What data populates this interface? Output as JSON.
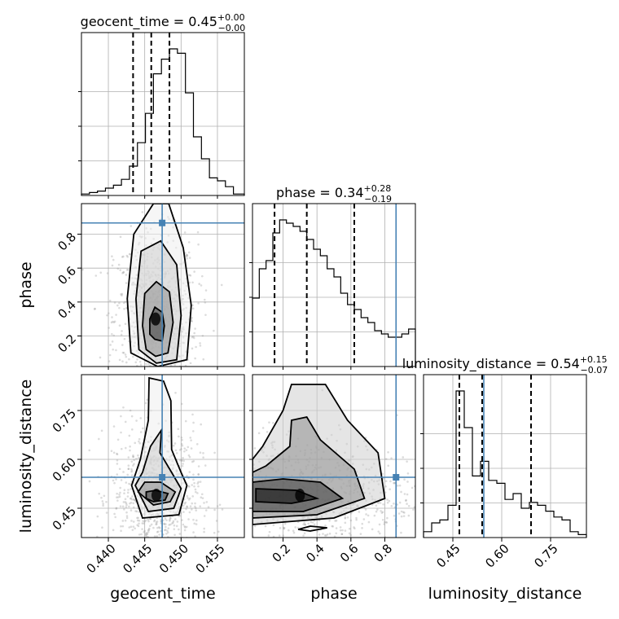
{
  "chart_data": {
    "type": "corner",
    "parameters": [
      "geocent_time",
      "phase",
      "luminosity_distance"
    ],
    "ranges": {
      "geocent_time": [
        0.4363,
        0.4587
      ],
      "phase": [
        0.02,
        0.98
      ],
      "luminosity_distance": [
        0.36,
        0.86
      ]
    },
    "truths": {
      "geocent_time": 0.4474,
      "phase": 0.866,
      "luminosity_distance": 0.545
    },
    "titles": {
      "geocent_time": {
        "label": "geocent_time",
        "value": "0.45",
        "plus": "+0.00",
        "minus": "−0.00"
      },
      "phase": {
        "label": "phase",
        "value": "0.34",
        "plus": "+0.28",
        "minus": "−0.19"
      },
      "luminosity_distance": {
        "label": "luminosity_distance",
        "value": "0.54",
        "plus": "+0.15",
        "minus": "−0.07"
      }
    },
    "quantiles": {
      "geocent_time": [
        0.4434,
        0.4459,
        0.4484
      ],
      "phase": [
        0.15,
        0.34,
        0.62
      ],
      "luminosity_distance": [
        0.47,
        0.54,
        0.69
      ]
    },
    "ticks": {
      "geocent_time": [
        {
          "v": 0.44,
          "t": "0.440"
        },
        {
          "v": 0.445,
          "t": "0.445"
        },
        {
          "v": 0.45,
          "t": "0.450"
        },
        {
          "v": 0.455,
          "t": "0.455"
        }
      ],
      "phase": [
        {
          "v": 0.2,
          "t": "0.2"
        },
        {
          "v": 0.4,
          "t": "0.4"
        },
        {
          "v": 0.6,
          "t": "0.6"
        },
        {
          "v": 0.8,
          "t": "0.8"
        }
      ],
      "luminosity_distance": [
        {
          "v": 0.45,
          "t": "0.45"
        },
        {
          "v": 0.6,
          "t": "0.60"
        },
        {
          "v": 0.75,
          "t": "0.75"
        }
      ]
    },
    "histograms": {
      "geocent_time": {
        "edges": [
          0.4363,
          0.4374,
          0.4385,
          0.4396,
          0.4407,
          0.4418,
          0.4429,
          0.444,
          0.4451,
          0.4462,
          0.4473,
          0.4484,
          0.4495,
          0.4506,
          0.4517,
          0.4528,
          0.4539,
          0.455,
          0.4561,
          0.4572,
          0.4587
        ],
        "counts": [
          0.01,
          0.02,
          0.03,
          0.05,
          0.07,
          0.11,
          0.2,
          0.36,
          0.56,
          0.83,
          0.93,
          1.0,
          0.97,
          0.7,
          0.4,
          0.25,
          0.12,
          0.1,
          0.06,
          0.01
        ],
        "note": ""
      },
      "phase": {
        "edges": [
          0.02,
          0.06,
          0.1,
          0.14,
          0.18,
          0.22,
          0.26,
          0.3,
          0.34,
          0.38,
          0.42,
          0.46,
          0.5,
          0.54,
          0.58,
          0.62,
          0.66,
          0.7,
          0.74,
          0.78,
          0.82,
          0.86,
          0.9,
          0.94,
          0.98
        ],
        "counts": [
          0.42,
          0.6,
          0.65,
          0.82,
          0.9,
          0.88,
          0.86,
          0.83,
          0.78,
          0.72,
          0.68,
          0.6,
          0.55,
          0.45,
          0.38,
          0.35,
          0.3,
          0.27,
          0.22,
          0.2,
          0.18,
          0.18,
          0.2,
          0.23
        ],
        "note": ""
      },
      "luminosity_distance": {
        "edges": [
          0.36,
          0.385,
          0.41,
          0.435,
          0.46,
          0.485,
          0.51,
          0.535,
          0.56,
          0.585,
          0.61,
          0.635,
          0.66,
          0.685,
          0.71,
          0.735,
          0.76,
          0.785,
          0.81,
          0.835,
          0.86
        ],
        "counts": [
          0.04,
          0.1,
          0.12,
          0.22,
          1.0,
          0.75,
          0.42,
          0.52,
          0.39,
          0.37,
          0.26,
          0.3,
          0.2,
          0.24,
          0.22,
          0.18,
          0.14,
          0.12,
          0.04,
          0.02
        ],
        "note": ""
      }
    },
    "joint": [
      {
        "x": "geocent_time",
        "y": "phase",
        "density_center": [
          0.4465,
          0.3
        ],
        "density_spread": [
          0.0016,
          0.14
        ],
        "contours": [
          [
            [
              0.4464,
              0.18
            ],
            [
              0.4474,
              0.17
            ],
            [
              0.4477,
              0.26
            ],
            [
              0.4474,
              0.34
            ],
            [
              0.4464,
              0.37
            ],
            [
              0.4457,
              0.3
            ],
            [
              0.4457,
              0.21
            ]
          ],
          [
            [
              0.4465,
              0.08
            ],
            [
              0.4482,
              0.1
            ],
            [
              0.4489,
              0.28
            ],
            [
              0.4484,
              0.46
            ],
            [
              0.4466,
              0.52
            ],
            [
              0.445,
              0.45
            ],
            [
              0.4447,
              0.26
            ],
            [
              0.4452,
              0.12
            ]
          ],
          [
            [
              0.4466,
              0.04
            ],
            [
              0.4494,
              0.06
            ],
            [
              0.45,
              0.32
            ],
            [
              0.4494,
              0.62
            ],
            [
              0.4472,
              0.76
            ],
            [
              0.4445,
              0.7
            ],
            [
              0.4438,
              0.42
            ],
            [
              0.4442,
              0.12
            ]
          ],
          [
            [
              0.4468,
              0.02
            ],
            [
              0.4508,
              0.06
            ],
            [
              0.4514,
              0.38
            ],
            [
              0.4503,
              0.72
            ],
            [
              0.4483,
              0.98
            ],
            [
              0.4462,
              0.98
            ],
            [
              0.4435,
              0.8
            ],
            [
              0.4426,
              0.42
            ],
            [
              0.4431,
              0.1
            ]
          ]
        ]
      },
      {
        "x": "geocent_time",
        "y": "luminosity_distance",
        "density_center": [
          0.4466,
          0.49
        ],
        "density_spread": [
          0.0017,
          0.06
        ],
        "contours": [
          [
            [
              0.4452,
              0.48
            ],
            [
              0.4462,
              0.47
            ],
            [
              0.4478,
              0.475
            ],
            [
              0.4482,
              0.495
            ],
            [
              0.4465,
              0.505
            ],
            [
              0.4452,
              0.5
            ]
          ],
          [
            [
              0.4441,
              0.5
            ],
            [
              0.4462,
              0.46
            ],
            [
              0.4485,
              0.47
            ],
            [
              0.4492,
              0.5
            ],
            [
              0.4472,
              0.53
            ],
            [
              0.445,
              0.53
            ]
          ],
          [
            [
              0.4437,
              0.52
            ],
            [
              0.4455,
              0.44
            ],
            [
              0.449,
              0.45
            ],
            [
              0.45,
              0.51
            ],
            [
              0.4487,
              0.56
            ],
            [
              0.4471,
              0.62
            ],
            [
              0.4473,
              0.69
            ],
            [
              0.4458,
              0.64
            ],
            [
              0.4447,
              0.56
            ]
          ],
          [
            [
              0.4432,
              0.52
            ],
            [
              0.4447,
              0.42
            ],
            [
              0.4497,
              0.43
            ],
            [
              0.4508,
              0.52
            ],
            [
              0.45,
              0.56
            ],
            [
              0.4487,
              0.63
            ],
            [
              0.4486,
              0.78
            ],
            [
              0.4476,
              0.84
            ],
            [
              0.4456,
              0.85
            ],
            [
              0.4455,
              0.72
            ],
            [
              0.4444,
              0.6
            ]
          ]
        ]
      },
      {
        "x": "phase",
        "y": "luminosity_distance",
        "density_center": [
          0.3,
          0.49
        ],
        "density_spread": [
          0.2,
          0.05
        ],
        "contours": [
          [
            [
              0.04,
              0.47
            ],
            [
              0.25,
              0.465
            ],
            [
              0.4,
              0.48
            ],
            [
              0.28,
              0.505
            ],
            [
              0.04,
              0.51
            ]
          ],
          [
            [
              0.02,
              0.44
            ],
            [
              0.32,
              0.44
            ],
            [
              0.55,
              0.48
            ],
            [
              0.42,
              0.53
            ],
            [
              0.2,
              0.54
            ],
            [
              0.02,
              0.53
            ]
          ],
          [
            [
              0.02,
              0.42
            ],
            [
              0.4,
              0.43
            ],
            [
              0.68,
              0.48
            ],
            [
              0.62,
              0.57
            ],
            [
              0.42,
              0.66
            ],
            [
              0.34,
              0.73
            ],
            [
              0.25,
              0.72
            ],
            [
              0.24,
              0.64
            ],
            [
              0.1,
              0.58
            ],
            [
              0.02,
              0.56
            ]
          ],
          [
            [
              0.02,
              0.4
            ],
            [
              0.5,
              0.42
            ],
            [
              0.8,
              0.48
            ],
            [
              0.76,
              0.62
            ],
            [
              0.58,
              0.72
            ],
            [
              0.45,
              0.83
            ],
            [
              0.25,
              0.83
            ],
            [
              0.2,
              0.75
            ],
            [
              0.08,
              0.64
            ],
            [
              0.02,
              0.6
            ]
          ],
          [
            [
              0.29,
              0.385
            ],
            [
              0.36,
              0.38
            ],
            [
              0.46,
              0.39
            ],
            [
              0.36,
              0.395
            ]
          ]
        ]
      }
    ]
  }
}
